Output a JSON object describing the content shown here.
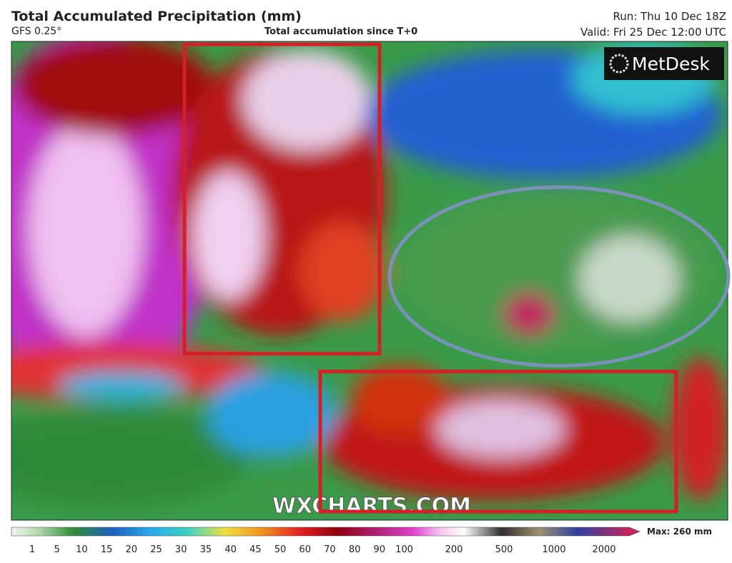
{
  "header": {
    "title": "Total Accumulated Precipitation (mm)",
    "model": "GFS 0.25°",
    "subtitle": "Total accumulation since T+0",
    "run": "Run: Thu 10 Dec 18Z",
    "valid": "Valid: Fri 25 Dec 12:00 UTC"
  },
  "map": {
    "logo": "MetDesk",
    "watermark": "WXCHARTS.COM"
  },
  "legend": {
    "labels": [
      1,
      5,
      10,
      15,
      20,
      25,
      30,
      35,
      40,
      45,
      50,
      60,
      70,
      80,
      90,
      100,
      200,
      500,
      1000,
      2000
    ],
    "max": "Max: 260 mm"
  }
}
